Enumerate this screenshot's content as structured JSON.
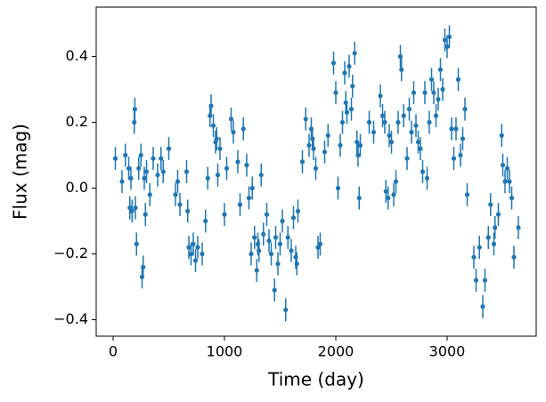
{
  "chart_data": {
    "type": "errorbar",
    "x_label": "Time (day)",
    "y_label": "Flux (mag)",
    "color": "#1f77b4",
    "xlim": [
      -152,
      3800
    ],
    "ylim": [
      -0.45,
      0.55
    ],
    "xticks": [
      0,
      1000,
      2000,
      3000
    ],
    "yticks": [
      {
        "value": -0.4,
        "label": "−0.4"
      },
      {
        "value": -0.2,
        "label": "−0.2"
      },
      {
        "value": 0,
        "label": "0.0"
      },
      0.2,
      0.4
    ],
    "x": [
      20,
      80,
      110,
      140,
      150,
      160,
      170,
      190,
      195,
      200,
      210,
      230,
      250,
      260,
      270,
      280,
      290,
      300,
      330,
      360,
      400,
      430,
      450,
      500,
      560,
      580,
      600,
      660,
      670,
      680,
      700,
      720,
      740,
      760,
      800,
      830,
      850,
      870,
      880,
      900,
      920,
      930,
      940,
      960,
      1000,
      1020,
      1060,
      1080,
      1120,
      1140,
      1170,
      1200,
      1220,
      1240,
      1250,
      1270,
      1290,
      1300,
      1310,
      1330,
      1350,
      1380,
      1400,
      1420,
      1450,
      1460,
      1480,
      1500,
      1520,
      1550,
      1570,
      1600,
      1620,
      1640,
      1650,
      1660,
      1700,
      1730,
      1760,
      1780,
      1790,
      1800,
      1820,
      1840,
      1860,
      1900,
      1930,
      1980,
      2000,
      2020,
      2040,
      2060,
      2080,
      2090,
      2100,
      2120,
      2140,
      2150,
      2170,
      2190,
      2200,
      2210,
      2220,
      2300,
      2340,
      2400,
      2420,
      2440,
      2450,
      2470,
      2480,
      2500,
      2520,
      2540,
      2560,
      2580,
      2590,
      2610,
      2640,
      2660,
      2680,
      2700,
      2720,
      2740,
      2760,
      2780,
      2800,
      2820,
      2840,
      2860,
      2880,
      2900,
      2920,
      2940,
      2960,
      2980,
      3000,
      3020,
      3040,
      3060,
      3080,
      3100,
      3120,
      3140,
      3160,
      3180,
      3240,
      3260,
      3290,
      3320,
      3340,
      3370,
      3390,
      3420,
      3430,
      3460,
      3490,
      3500,
      3520,
      3540,
      3560,
      3580,
      3600,
      3640
    ],
    "values": [
      0.09,
      0.02,
      0.1,
      0.06,
      -0.06,
      0.03,
      -0.07,
      0.2,
      0.24,
      -0.06,
      -0.17,
      0.06,
      0.1,
      -0.27,
      -0.24,
      0.03,
      -0.08,
      0.05,
      -0.02,
      0.09,
      0.04,
      0.09,
      0.05,
      0.12,
      -0.02,
      0.02,
      -0.05,
      0.05,
      -0.07,
      -0.18,
      -0.2,
      -0.17,
      -0.22,
      -0.18,
      -0.2,
      -0.1,
      0.03,
      0.22,
      0.25,
      0.19,
      0.14,
      0.15,
      0.04,
      0.12,
      -0.08,
      0.06,
      0.21,
      0.17,
      0.08,
      -0.05,
      0.18,
      0.07,
      -0.03,
      -0.2,
      0,
      -0.15,
      -0.25,
      -0.17,
      -0.19,
      0.04,
      -0.14,
      -0.08,
      -0.16,
      -0.2,
      -0.31,
      -0.15,
      -0.23,
      -0.17,
      -0.1,
      -0.37,
      -0.15,
      -0.19,
      -0.09,
      -0.21,
      -0.23,
      -0.07,
      0.08,
      0.21,
      0.13,
      0.18,
      0.15,
      0.12,
      0.06,
      -0.18,
      -0.17,
      0.11,
      0.16,
      0.38,
      0.29,
      0,
      0.13,
      0.2,
      0.35,
      0.26,
      0.23,
      0.37,
      0.24,
      0.31,
      0.41,
      0.14,
      0.1,
      -0.03,
      0.13,
      0.2,
      0.17,
      0.28,
      0.22,
      0.2,
      -0.01,
      -0.03,
      0.16,
      0.14,
      -0.02,
      0.02,
      0.2,
      0.4,
      0.36,
      0.22,
      0.09,
      0.24,
      0.17,
      0.29,
      0.19,
      0.14,
      0.12,
      0.05,
      0.29,
      0.03,
      0.2,
      0.33,
      0.29,
      0.22,
      0.27,
      0.36,
      0.3,
      0.45,
      0.43,
      0.46,
      0.18,
      0.09,
      0.18,
      0.33,
      0.1,
      0.15,
      0.24,
      -0.02,
      -0.21,
      -0.28,
      -0.18,
      -0.36,
      -0.28,
      -0.15,
      -0.05,
      -0.17,
      -0.12,
      -0.08,
      0.16,
      0.07,
      0.02,
      0.06,
      0.02,
      -0.03,
      -0.21,
      -0.12
    ],
    "errors": [
      0.035,
      0.035,
      0.035,
      0.035,
      0.035,
      0.035,
      0.035,
      0.035,
      0.035,
      0.035,
      0.035,
      0.035,
      0.035,
      0.035,
      0.035,
      0.035,
      0.035,
      0.035,
      0.035,
      0.035,
      0.035,
      0.035,
      0.035,
      0.035,
      0.035,
      0.035,
      0.035,
      0.035,
      0.035,
      0.035,
      0.035,
      0.035,
      0.035,
      0.035,
      0.035,
      0.035,
      0.035,
      0.035,
      0.035,
      0.035,
      0.035,
      0.035,
      0.035,
      0.035,
      0.035,
      0.035,
      0.035,
      0.035,
      0.035,
      0.035,
      0.035,
      0.035,
      0.035,
      0.035,
      0.035,
      0.035,
      0.035,
      0.035,
      0.035,
      0.035,
      0.035,
      0.035,
      0.035,
      0.035,
      0.035,
      0.035,
      0.035,
      0.035,
      0.035,
      0.035,
      0.035,
      0.035,
      0.035,
      0.035,
      0.035,
      0.035,
      0.035,
      0.035,
      0.035,
      0.035,
      0.035,
      0.035,
      0.035,
      0.035,
      0.035,
      0.035,
      0.035,
      0.035,
      0.035,
      0.035,
      0.035,
      0.035,
      0.035,
      0.035,
      0.035,
      0.035,
      0.035,
      0.035,
      0.035,
      0.035,
      0.035,
      0.035,
      0.035,
      0.035,
      0.035,
      0.035,
      0.035,
      0.035,
      0.035,
      0.035,
      0.035,
      0.035,
      0.035,
      0.035,
      0.035,
      0.035,
      0.035,
      0.035,
      0.035,
      0.035,
      0.035,
      0.035,
      0.035,
      0.035,
      0.035,
      0.035,
      0.035,
      0.035,
      0.035,
      0.035,
      0.035,
      0.035,
      0.035,
      0.035,
      0.035,
      0.035,
      0.035,
      0.035,
      0.035,
      0.035,
      0.035,
      0.035,
      0.035,
      0.035,
      0.035,
      0.035,
      0.035,
      0.035,
      0.035,
      0.035,
      0.035,
      0.035,
      0.035,
      0.035,
      0.035,
      0.035,
      0.035,
      0.035,
      0.035,
      0.035,
      0.035,
      0.035,
      0.035,
      0.035
    ]
  }
}
